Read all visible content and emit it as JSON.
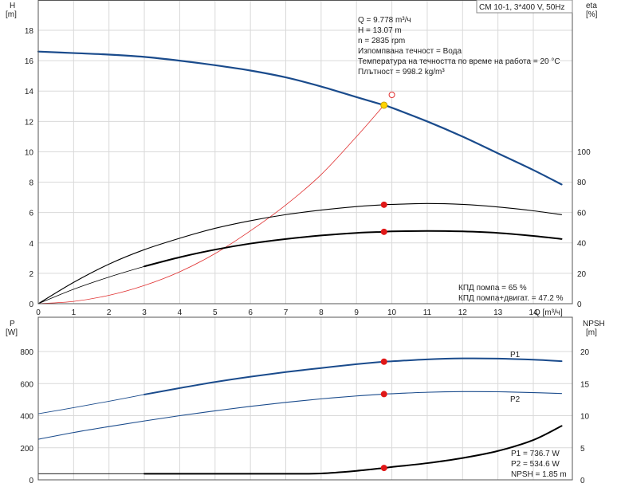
{
  "header": {
    "model_label": "CM 10-1, 3*400 V, 50Hz"
  },
  "upper_info": {
    "q": "Q = 9.778 m³/ч",
    "h": "H = 13.07 m",
    "n": "n = 2835 rpm",
    "liquid": "Изпомпвана течност = Вода",
    "temperature": "Температура на течността по време на работа = 20 °C",
    "density": "Плътност = 998.2 kg/m³"
  },
  "upper_efficiency_info": {
    "pump": "КПД помпа = 65 %",
    "pump_motor": "КПД помпа+двигат. = 47.2 %"
  },
  "lower_info": {
    "p1": "P1 = 736.7 W",
    "p2": "P2 = 534.6 W",
    "npsh": "NPSH = 1.85 m"
  },
  "chart_data": [
    {
      "type": "line",
      "panel": "upper",
      "xlabel": "Q [m³/ч]",
      "ylabel_left": [
        "H",
        "[m]"
      ],
      "ylabel_right": [
        "eta",
        "[%]"
      ],
      "xlim": [
        0,
        16.5
      ],
      "ylim_left": [
        0,
        19
      ],
      "ylim_right": [
        0,
        190
      ],
      "x_ticks": [
        0,
        1,
        2,
        3,
        4,
        5,
        6,
        7,
        8,
        9,
        10,
        11,
        12,
        13,
        14
      ],
      "y_ticks_left": [
        0,
        2,
        4,
        6,
        8,
        10,
        12,
        14,
        16,
        18
      ],
      "y_ticks_right": [
        0,
        20,
        40,
        60,
        80,
        100
      ],
      "grid": true,
      "series": [
        {
          "id": "h_curve",
          "axis": "left",
          "color": "#1a4b8c",
          "width": 2.2,
          "x": [
            0,
            1,
            2,
            3,
            4,
            5,
            6,
            7,
            8,
            9,
            9.778,
            10,
            11,
            12,
            13,
            14,
            14.8
          ],
          "y": [
            16.6,
            16.5,
            16.4,
            16.25,
            16.0,
            15.7,
            15.35,
            14.9,
            14.3,
            13.6,
            13.07,
            12.9,
            12.0,
            11.0,
            9.9,
            8.8,
            7.85
          ]
        },
        {
          "id": "h_thin",
          "axis": "left",
          "color": "#e03030",
          "width": 0.8,
          "x": [
            0,
            1,
            2,
            3,
            4,
            5,
            6,
            7,
            8,
            9,
            9.778
          ],
          "y": [
            0,
            0.15,
            0.55,
            1.2,
            2.1,
            3.3,
            4.8,
            6.5,
            8.5,
            11.0,
            13.07
          ]
        },
        {
          "id": "eta_pump",
          "axis": "right",
          "color": "#000000",
          "width": 1.1,
          "x": [
            0,
            1,
            2,
            3,
            4,
            5,
            6,
            7,
            8,
            9,
            9.778,
            10,
            11,
            12,
            13,
            14,
            14.8
          ],
          "y": [
            0,
            14,
            26,
            35.5,
            43,
            49.5,
            54.5,
            58.5,
            61.5,
            63.8,
            65,
            65.2,
            65.8,
            65.2,
            63.5,
            61,
            58.5
          ]
        },
        {
          "id": "eta_total",
          "axis": "right",
          "color": "#000000",
          "width": 2.0,
          "x": [
            3,
            4,
            5,
            6,
            7,
            8,
            9,
            9.778,
            10,
            11,
            12,
            13,
            14,
            14.8
          ],
          "y": [
            24.5,
            30.5,
            35.5,
            39.5,
            42.5,
            44.8,
            46.5,
            47.2,
            47.5,
            47.8,
            47.5,
            46.5,
            44.5,
            42.5
          ]
        },
        {
          "id": "eta_thin",
          "axis": "right",
          "color": "#000000",
          "width": 0.8,
          "x": [
            0,
            1,
            2,
            3
          ],
          "y": [
            0,
            9.5,
            17.5,
            24.5
          ]
        }
      ],
      "markers": [
        {
          "x": 9.778,
          "y": 13.07,
          "axis": "left",
          "kind": "yellow"
        },
        {
          "x": 10.0,
          "y": 13.75,
          "axis": "left",
          "kind": "hollow"
        },
        {
          "x": 9.778,
          "y": 65,
          "axis": "right",
          "kind": "red"
        },
        {
          "x": 9.778,
          "y": 47.2,
          "axis": "right",
          "kind": "red"
        }
      ]
    },
    {
      "type": "line",
      "panel": "lower",
      "ylabel_left": [
        "P",
        "[W]"
      ],
      "ylabel_right": [
        "NPSH",
        "[m]"
      ],
      "xlim": [
        0,
        16.5
      ],
      "ylim_left": [
        0,
        1000
      ],
      "ylim_right": [
        0,
        25
      ],
      "y_ticks_left": [
        0,
        200,
        400,
        600,
        800
      ],
      "y_ticks_right": [
        0,
        5,
        10,
        15,
        20
      ],
      "grid": true,
      "series": [
        {
          "id": "p1",
          "name": "P1",
          "axis": "left",
          "color": "#1a4b8c",
          "width": 2.0,
          "x": [
            3,
            4,
            5,
            6,
            7,
            8,
            9,
            9.778,
            10,
            11,
            12,
            13,
            14,
            14.8
          ],
          "y": [
            532,
            572,
            610,
            643,
            672,
            697,
            721,
            736.7,
            739,
            751,
            757,
            756,
            749,
            740
          ]
        },
        {
          "id": "p1_thin",
          "axis": "left",
          "color": "#1a4b8c",
          "width": 0.9,
          "x": [
            0,
            1,
            2,
            3
          ],
          "y": [
            412,
            450,
            490,
            532
          ]
        },
        {
          "id": "p2",
          "name": "P2",
          "axis": "left",
          "color": "#1a4b8c",
          "width": 1.1,
          "x": [
            0,
            1,
            2,
            3,
            4,
            5,
            6,
            7,
            8,
            9,
            9.778,
            10,
            11,
            12,
            13,
            14,
            14.8
          ],
          "y": [
            253,
            295,
            332,
            367,
            400,
            430,
            458,
            483,
            505,
            523,
            534.6,
            537,
            546,
            550,
            549,
            544,
            538
          ]
        },
        {
          "id": "npsh",
          "axis": "right",
          "color": "#000000",
          "width": 2.0,
          "x": [
            3,
            4,
            5,
            6,
            7,
            8,
            9,
            9.778,
            10,
            11,
            12,
            13,
            14,
            14.8
          ],
          "y": [
            0.95,
            0.95,
            0.95,
            0.95,
            0.95,
            1.0,
            1.4,
            1.85,
            2.0,
            2.6,
            3.4,
            4.5,
            6.2,
            8.4
          ]
        },
        {
          "id": "npsh_flat",
          "axis": "right",
          "color": "#000000",
          "width": 0.9,
          "x": [
            0,
            3
          ],
          "y": [
            0.95,
            0.95
          ]
        }
      ],
      "markers": [
        {
          "x": 9.778,
          "y": 736.7,
          "axis": "left",
          "kind": "red"
        },
        {
          "x": 9.778,
          "y": 534.6,
          "axis": "left",
          "kind": "red"
        },
        {
          "x": 9.778,
          "y": 1.85,
          "axis": "right",
          "kind": "red"
        }
      ],
      "series_labels": [
        "P1",
        "P2"
      ]
    }
  ]
}
